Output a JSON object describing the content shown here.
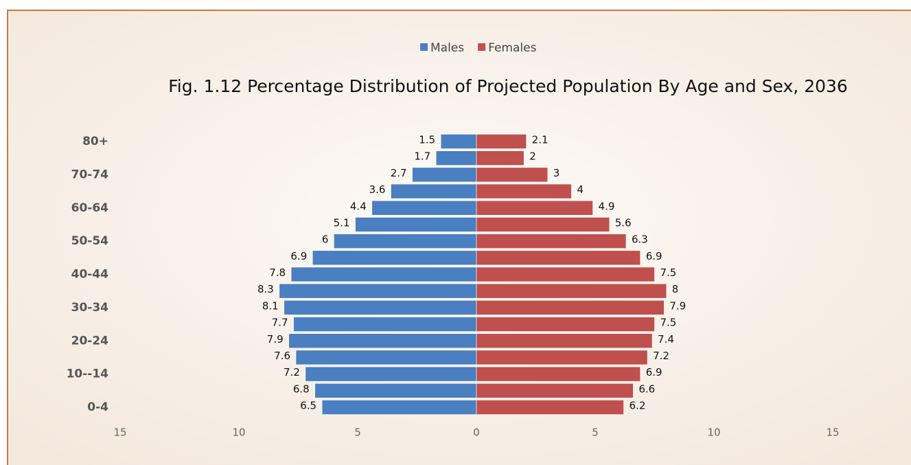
{
  "chart_data": {
    "type": "pyramid",
    "title": "Fig. 1.12 Percentage Distribution of Projected Population By Age and Sex, 2036",
    "categories": [
      "0-4",
      null,
      "10--14",
      null,
      "20-24",
      null,
      "30-34",
      null,
      "40-44",
      null,
      "50-54",
      null,
      "60-64",
      null,
      "70-74",
      null,
      "80+"
    ],
    "series": [
      {
        "name": "Males",
        "color": "#4a7fc1",
        "values": [
          6.5,
          6.8,
          7.2,
          7.6,
          7.9,
          7.7,
          8.1,
          8.3,
          7.8,
          6.9,
          6,
          5.1,
          4.4,
          3.6,
          2.7,
          1.7,
          1.5
        ]
      },
      {
        "name": "Females",
        "color": "#c0504d",
        "values": [
          6.2,
          6.6,
          6.9,
          7.2,
          7.4,
          7.5,
          7.9,
          8,
          7.5,
          6.9,
          6.3,
          5.6,
          4.9,
          4,
          3,
          2,
          2.1
        ]
      }
    ],
    "xlim": [
      -15,
      15
    ],
    "xticks": [
      {
        "value": -15,
        "label": "15"
      },
      {
        "value": -10,
        "label": "10"
      },
      {
        "value": -5,
        "label": "5"
      },
      0,
      5,
      10,
      15
    ],
    "grid": false,
    "legend": "top"
  }
}
